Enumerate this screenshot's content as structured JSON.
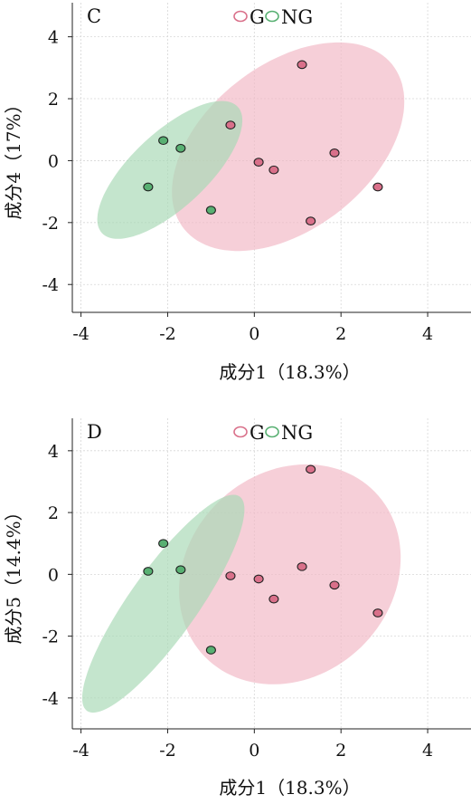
{
  "chart_data": [
    {
      "type": "scatter",
      "panel_label": "C",
      "xlabel": "成分1（18.3%）",
      "ylabel": "成分4（17%）",
      "xlim": [
        -4.2,
        5.0
      ],
      "ylim": [
        -4.9,
        5.1
      ],
      "xticks": [
        -4,
        -2,
        0,
        2,
        4
      ],
      "yticks": [
        -4,
        -2,
        0,
        2,
        4
      ],
      "grid": true,
      "legend_position": "top-center",
      "series": [
        {
          "name": "G",
          "color": "#d9708a",
          "fill": "#f2b8c6",
          "points": [
            [
              1.1,
              3.1
            ],
            [
              -0.55,
              1.15
            ],
            [
              0.1,
              -0.05
            ],
            [
              0.45,
              -0.3
            ],
            [
              1.85,
              0.25
            ],
            [
              2.85,
              -0.85
            ],
            [
              1.3,
              -1.95
            ]
          ],
          "ellipse": {
            "cx": 0.78,
            "cy": 0.45,
            "rx": 2.2,
            "ry": 3.7,
            "angle": -31
          }
        },
        {
          "name": "NG",
          "color": "#58b072",
          "fill": "#a8d9b6",
          "points": [
            [
              -2.1,
              0.65
            ],
            [
              -1.7,
              0.4
            ],
            [
              -2.45,
              -0.85
            ],
            [
              -1.0,
              -1.6
            ]
          ],
          "ellipse": {
            "cx": -1.95,
            "cy": -0.3,
            "rx": 1.0,
            "ry": 2.6,
            "angle": -34
          }
        }
      ]
    },
    {
      "type": "scatter",
      "panel_label": "D",
      "xlabel": "成分1（18.3%）",
      "ylabel": "成分5（14.4%）",
      "xlim": [
        -4.2,
        5.0
      ],
      "ylim": [
        -5.0,
        5.05
      ],
      "xticks": [
        -4,
        -2,
        0,
        2,
        4
      ],
      "yticks": [
        -4,
        -2,
        0,
        2,
        4
      ],
      "grid": true,
      "legend_position": "top-center",
      "series": [
        {
          "name": "G",
          "color": "#d9708a",
          "fill": "#f2b8c6",
          "points": [
            [
              1.3,
              3.4
            ],
            [
              -0.55,
              -0.05
            ],
            [
              0.1,
              -0.15
            ],
            [
              0.45,
              -0.8
            ],
            [
              1.1,
              0.25
            ],
            [
              1.85,
              -0.35
            ],
            [
              2.85,
              -1.25
            ]
          ],
          "ellipse": {
            "cx": 0.82,
            "cy": 0.0,
            "rx": 2.5,
            "ry": 3.6,
            "angle": -12
          }
        },
        {
          "name": "NG",
          "color": "#58b072",
          "fill": "#a8d9b6",
          "points": [
            [
              -2.1,
              1.0
            ],
            [
              -1.7,
              0.15
            ],
            [
              -2.45,
              0.1
            ],
            [
              -1.0,
              -2.45
            ]
          ],
          "ellipse": {
            "cx": -2.1,
            "cy": -0.95,
            "rx": 0.85,
            "ry": 3.9,
            "angle": -26
          }
        }
      ]
    }
  ]
}
